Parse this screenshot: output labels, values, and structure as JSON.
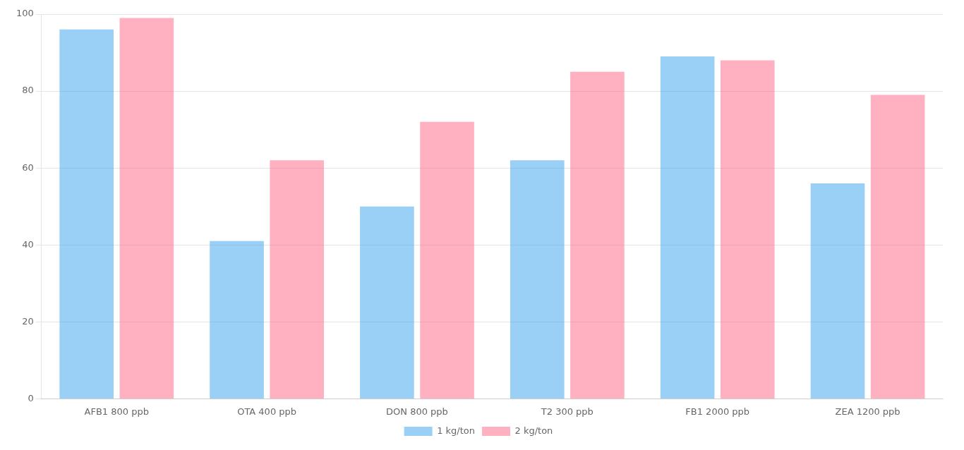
{
  "chart_data": {
    "type": "bar",
    "categories": [
      "AFB1 800 ppb",
      "OTA 400 ppb",
      "DON 800 ppb",
      "T2 300 ppb",
      "FB1 2000 ppb",
      "ZEA 1200 ppb"
    ],
    "series": [
      {
        "name": "1 kg/ton",
        "values": [
          96,
          41,
          50,
          62,
          89,
          56
        ]
      },
      {
        "name": "2 kg/ton",
        "values": [
          99,
          62,
          72,
          85,
          88,
          79
        ]
      }
    ],
    "ylim": [
      0,
      100
    ],
    "yticks": [
      0,
      20,
      40,
      60,
      80,
      100
    ],
    "grid": true,
    "legend": "bottom"
  }
}
